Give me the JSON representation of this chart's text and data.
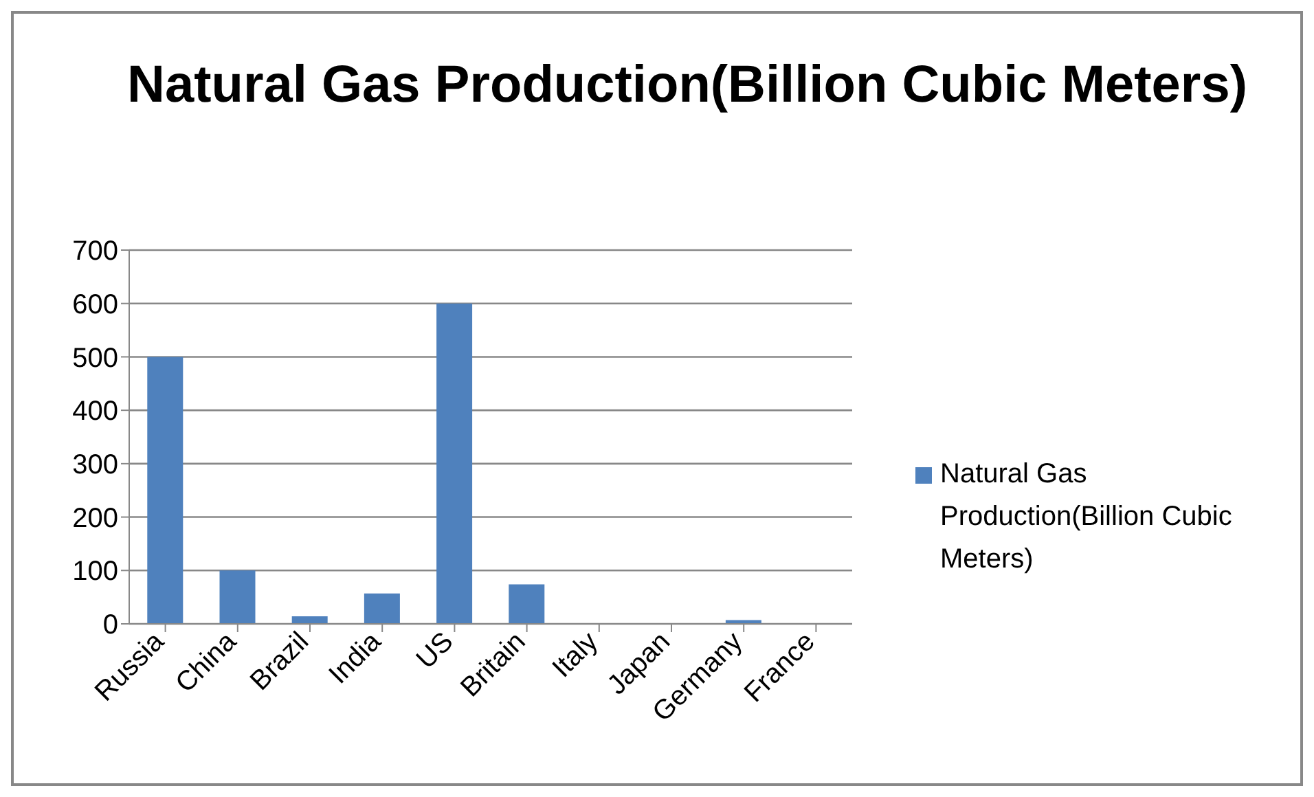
{
  "chart_data": {
    "type": "bar",
    "title": "Natural Gas Production(Billion Cubic Meters)",
    "categories": [
      "Russia",
      "China",
      "Brazil",
      "India",
      "US",
      "Britain",
      "Italy",
      "Japan",
      "Germany",
      "France"
    ],
    "series": [
      {
        "name": "Natural Gas Production(Billion Cubic Meters)",
        "color": "#4f81bd",
        "values": [
          500,
          100,
          14,
          57,
          600,
          74,
          0,
          0,
          7,
          0
        ]
      }
    ],
    "ylim": [
      0,
      700
    ],
    "yticks": [
      0,
      100,
      200,
      300,
      400,
      500,
      600,
      700
    ],
    "grid": "y",
    "legend": "right"
  }
}
